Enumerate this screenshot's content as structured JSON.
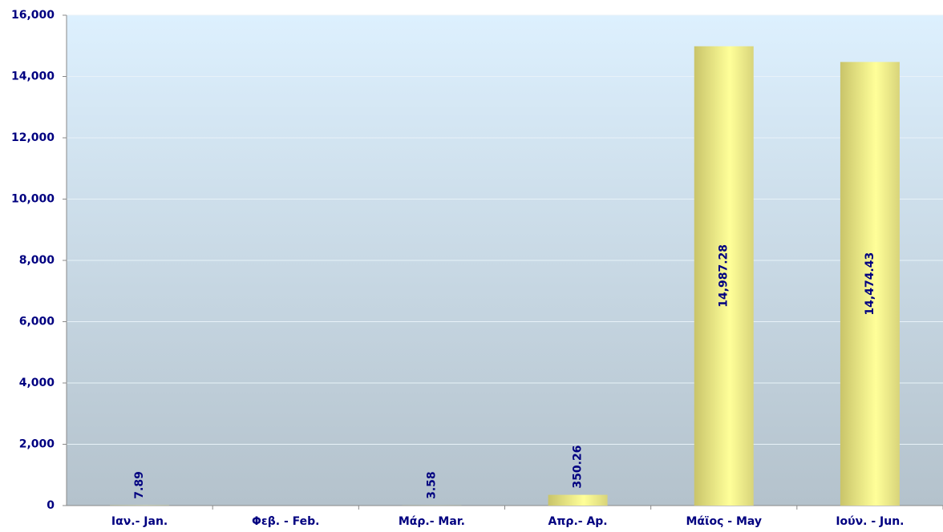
{
  "chart_data": {
    "type": "bar",
    "categories": [
      "Ιαν.- Jan.",
      "Φεβ. - Feb.",
      "Μάρ.- Mar.",
      "Απρ.- Ap.",
      "Μάϊος - May",
      "Ιούν. - Jun."
    ],
    "values": [
      7.89,
      null,
      3.58,
      350.26,
      14987.28,
      14474.43
    ],
    "value_labels": [
      "7.89",
      null,
      "3.58",
      "350.26",
      "14,987.28",
      "14,474.43"
    ],
    "color": "#ffff99",
    "ylim": [
      0,
      16000
    ],
    "yticks": [
      0,
      {
        "value": 2000,
        "label": "2,000"
      },
      {
        "value": 4000,
        "label": "4,000"
      },
      {
        "value": 6000,
        "label": "6,000"
      },
      {
        "value": 8000,
        "label": "8,000"
      },
      {
        "value": 10000,
        "label": "10,000"
      },
      {
        "value": 12000,
        "label": "12,000"
      },
      {
        "value": 14000,
        "label": "14,000"
      },
      {
        "value": 16000,
        "label": "16,000"
      }
    ],
    "grid": true
  }
}
